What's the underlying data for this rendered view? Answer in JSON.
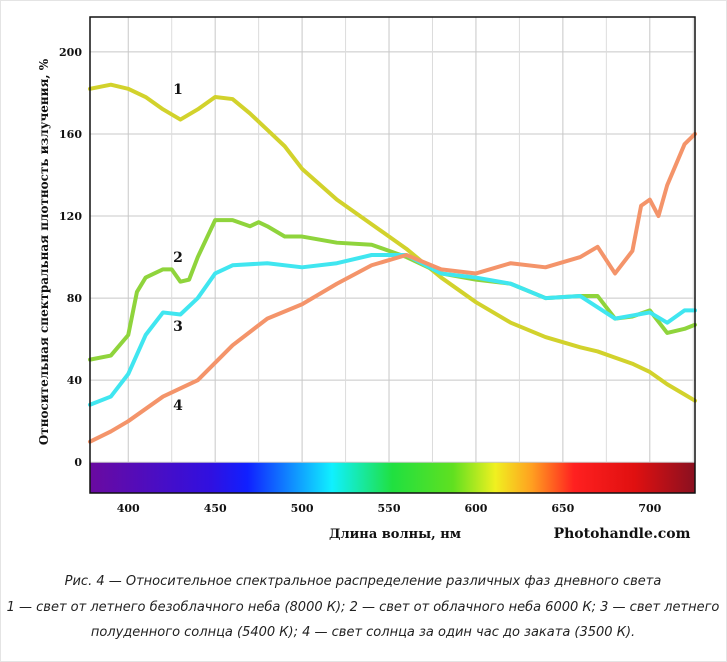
{
  "chart_data": {
    "type": "line",
    "x_label": "Длина волны, нм",
    "y_label": "Относительная спектральная плотность излучения, %",
    "watermark": "Photohandle.com",
    "caption": [
      "Рис. 4 — Относительное спектральное распределение различных фаз дневного света",
      "1 — свет от летнего безоблачного неба (8000 К); 2 — свет от облачного неба 6000 К; 3 — свет летнего",
      "полуденного солнца (5400 К); 4 — свет солнца за один час до заката (3500 К)."
    ],
    "xlim": [
      378,
      726
    ],
    "ylim": [
      -15,
      217
    ],
    "xticks": [
      400,
      450,
      500,
      550,
      600,
      650,
      700
    ],
    "x_minor_ticks": [
      425,
      475,
      525,
      575,
      625,
      675,
      725
    ],
    "yticks": [
      0,
      40,
      80,
      120,
      160,
      200
    ],
    "grid": true,
    "series": [
      {
        "name": "1",
        "color": "#d2d22c",
        "x": [
          378,
          390,
          400,
          410,
          420,
          430,
          440,
          450,
          460,
          470,
          480,
          490,
          500,
          520,
          540,
          560,
          580,
          600,
          620,
          640,
          660,
          670,
          680,
          690,
          700,
          710,
          720,
          726
        ],
        "values": [
          182,
          184,
          182,
          178,
          172,
          167,
          172,
          178,
          177,
          170,
          162,
          154,
          143,
          128,
          116,
          104,
          90,
          78,
          68,
          61,
          56,
          54,
          51,
          48,
          44,
          38,
          33,
          30
        ]
      },
      {
        "name": "2",
        "color": "#8fd43c",
        "x": [
          378,
          390,
          400,
          405,
          410,
          420,
          425,
          430,
          435,
          440,
          450,
          460,
          470,
          475,
          480,
          490,
          500,
          520,
          540,
          560,
          580,
          600,
          620,
          640,
          660,
          670,
          680,
          690,
          700,
          710,
          720,
          726
        ],
        "values": [
          50,
          52,
          62,
          83,
          90,
          94,
          94,
          88,
          89,
          100,
          118,
          118,
          115,
          117,
          115,
          110,
          110,
          107,
          106,
          100,
          92,
          89,
          87,
          80,
          81,
          81,
          70,
          71,
          74,
          63,
          65,
          67
        ]
      },
      {
        "name": "3",
        "color": "#40e6f0",
        "x": [
          378,
          390,
          400,
          410,
          420,
          430,
          440,
          450,
          460,
          480,
          500,
          520,
          540,
          560,
          580,
          600,
          620,
          640,
          660,
          680,
          700,
          710,
          720,
          726
        ],
        "values": [
          28,
          32,
          43,
          62,
          73,
          72,
          80,
          92,
          96,
          97,
          95,
          97,
          101,
          101,
          92,
          90,
          87,
          80,
          81,
          70,
          73,
          68,
          74,
          74
        ]
      },
      {
        "name": "4",
        "color": "#f4946a",
        "x": [
          378,
          390,
          400,
          420,
          440,
          460,
          480,
          500,
          520,
          540,
          560,
          580,
          600,
          620,
          640,
          660,
          670,
          680,
          690,
          695,
          700,
          705,
          710,
          720,
          726
        ],
        "values": [
          10,
          15,
          20,
          32,
          40,
          57,
          70,
          77,
          87,
          96,
          101,
          94,
          92,
          97,
          95,
          100,
          105,
          92,
          103,
          125,
          128,
          120,
          135,
          155,
          160
        ]
      }
    ]
  }
}
